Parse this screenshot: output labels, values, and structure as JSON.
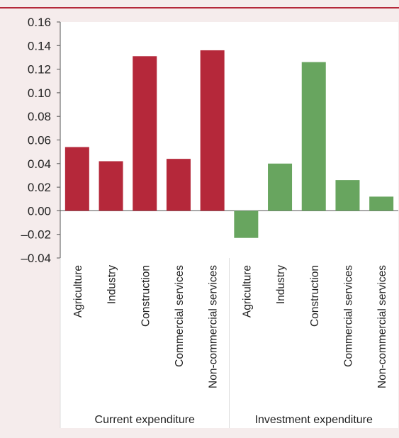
{
  "chart_data": {
    "type": "bar",
    "ylim": [
      -0.04,
      0.16
    ],
    "yticks": [
      "0.16",
      "0.14",
      "0.12",
      "0.10",
      "0.08",
      "0.06",
      "0.04",
      "0.02",
      "0.00",
      "–0.02",
      "–0.04"
    ],
    "ytick_values": [
      0.16,
      0.14,
      0.12,
      0.1,
      0.08,
      0.06,
      0.04,
      0.02,
      0.0,
      -0.02,
      -0.04
    ],
    "grid": false,
    "groups": [
      {
        "name": "Current expenditure",
        "color": "#b5283a",
        "categories": [
          "Agriculture",
          "Industry",
          "Construction",
          "Commercial services",
          "Non-commercial services"
        ],
        "values": [
          0.054,
          0.042,
          0.131,
          0.044,
          0.136
        ]
      },
      {
        "name": "Investment expenditure",
        "color": "#68a55f",
        "categories": [
          "Agriculture",
          "Industry",
          "Construction",
          "Commercial services",
          "Non-commercial services"
        ],
        "values": [
          -0.023,
          0.04,
          0.126,
          0.026,
          0.012
        ]
      }
    ]
  }
}
